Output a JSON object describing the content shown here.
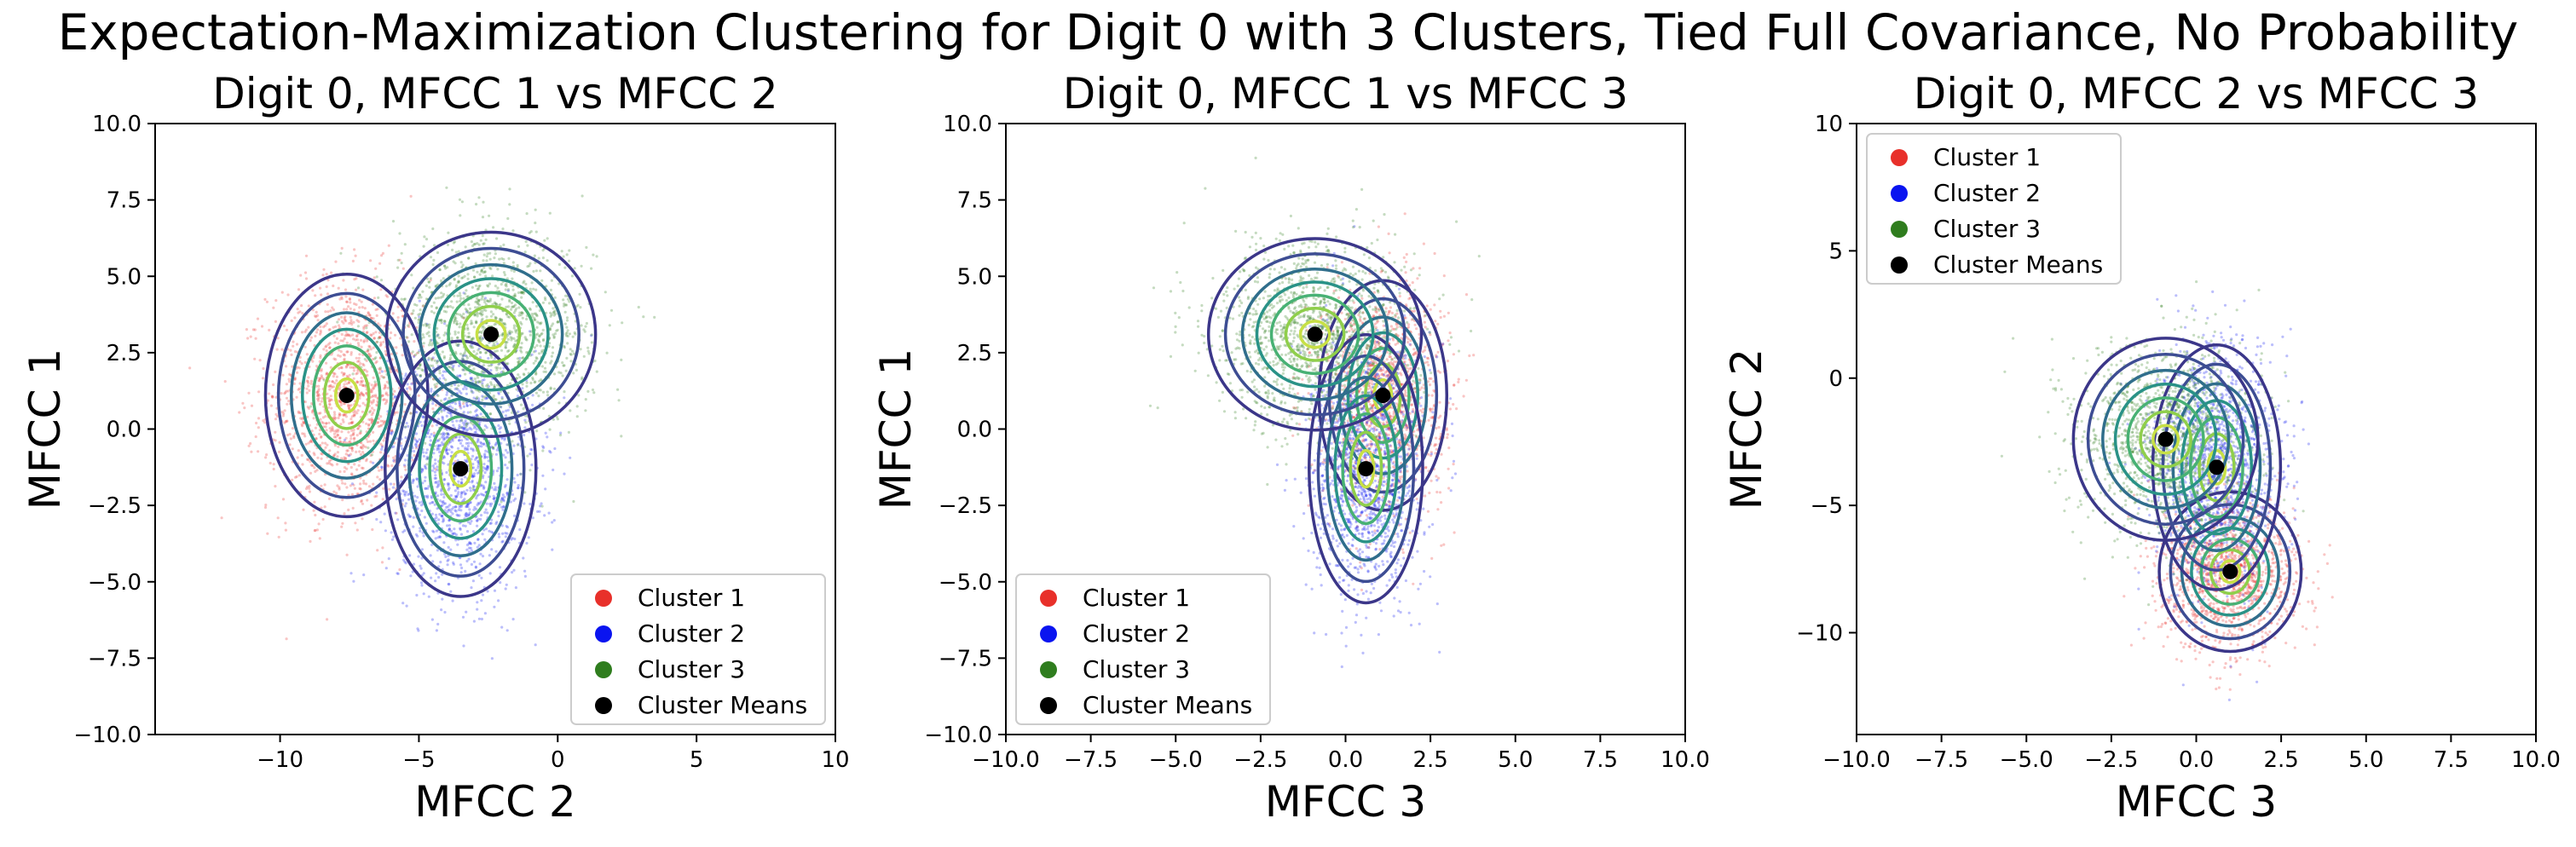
{
  "suptitle": "Expectation-Maximization Clustering for Digit 0 with 3 Clusters, Tied Full Covariance, No Probability",
  "colors": {
    "cluster1": "#e8302a",
    "cluster2": "#0a14f0",
    "cluster3": "#2f7d1e",
    "means": "#000000"
  },
  "legend_labels": [
    "Cluster 1",
    "Cluster 2",
    "Cluster 3",
    "Cluster Means"
  ],
  "chart_data": [
    {
      "type": "scatter",
      "title": "Digit 0, MFCC 1 vs MFCC 2",
      "xlabel": "MFCC 2",
      "ylabel": "MFCC 1",
      "xlim": [
        -14.5,
        10
      ],
      "ylim": [
        -10,
        10
      ],
      "xticks": [
        -10,
        -5,
        0,
        5,
        10
      ],
      "yticks": [
        -10.0,
        -7.5,
        -5.0,
        -2.5,
        0.0,
        2.5,
        5.0,
        7.5,
        10.0
      ],
      "xtick_labels": [
        "−10",
        "−5",
        "0",
        "5",
        "10"
      ],
      "ytick_labels": [
        "−10.0",
        "−7.5",
        "−5.0",
        "−2.5",
        "0.0",
        "2.5",
        "5.0",
        "7.5",
        "10.0"
      ],
      "legend_position": "lower-right",
      "series": [
        {
          "name": "Cluster 1",
          "color": "#e8302a",
          "mean": [
            -7.6,
            1.1
          ],
          "spread": [
            1.4,
            1.9
          ]
        },
        {
          "name": "Cluster 2",
          "color": "#0a14f0",
          "mean": [
            -3.5,
            -1.3
          ],
          "spread": [
            1.3,
            2.0
          ]
        },
        {
          "name": "Cluster 3",
          "color": "#2f7d1e",
          "mean": [
            -2.4,
            3.1
          ],
          "spread": [
            1.8,
            1.6
          ]
        }
      ],
      "cluster_means": [
        [
          -7.6,
          1.1
        ],
        [
          -3.5,
          -1.3
        ],
        [
          -2.4,
          3.1
        ]
      ]
    },
    {
      "type": "scatter",
      "title": "Digit 0, MFCC 1 vs MFCC 3",
      "xlabel": "MFCC 3",
      "ylabel": "MFCC 1",
      "xlim": [
        -10,
        10
      ],
      "ylim": [
        -10,
        10
      ],
      "xticks": [
        -10,
        -7.5,
        -5,
        -2.5,
        0,
        2.5,
        5,
        7.5,
        10
      ],
      "yticks": [
        -10.0,
        -7.5,
        -5.0,
        -2.5,
        0.0,
        2.5,
        5.0,
        7.5,
        10.0
      ],
      "xtick_labels": [
        "−10.0",
        "−7.5",
        "−5.0",
        "−2.5",
        "0.0",
        "2.5",
        "5.0",
        "7.5",
        "10.0"
      ],
      "ytick_labels": [
        "−10.0",
        "−7.5",
        "−5.0",
        "−2.5",
        "0.0",
        "2.5",
        "5.0",
        "7.5",
        "10.0"
      ],
      "legend_position": "lower-left",
      "series": [
        {
          "name": "Cluster 1",
          "color": "#e8302a",
          "mean": [
            1.1,
            1.1
          ],
          "spread": [
            0.9,
            1.8
          ]
        },
        {
          "name": "Cluster 2",
          "color": "#0a14f0",
          "mean": [
            0.6,
            -1.3
          ],
          "spread": [
            0.8,
            2.1
          ]
        },
        {
          "name": "Cluster 3",
          "color": "#2f7d1e",
          "mean": [
            -0.9,
            3.1
          ],
          "spread": [
            1.5,
            1.5
          ]
        }
      ],
      "cluster_means": [
        [
          1.1,
          1.1
        ],
        [
          0.6,
          -1.3
        ],
        [
          -0.9,
          3.1
        ]
      ]
    },
    {
      "type": "scatter",
      "title": "Digit 0, MFCC 2 vs MFCC 3",
      "xlabel": "MFCC 3",
      "ylabel": "MFCC 2",
      "xlim": [
        -10,
        10
      ],
      "ylim": [
        -14,
        10
      ],
      "xticks": [
        -10,
        -7.5,
        -5,
        -2.5,
        0,
        2.5,
        5,
        7.5,
        10
      ],
      "yticks": [
        -10,
        -5,
        0,
        5,
        10
      ],
      "xtick_labels": [
        "−10.0",
        "−7.5",
        "−5.0",
        "−2.5",
        "0.0",
        "2.5",
        "5.0",
        "7.5",
        "10.0"
      ],
      "ytick_labels": [
        "−10",
        "−5",
        "0",
        "5",
        "10"
      ],
      "legend_position": "upper-left",
      "series": [
        {
          "name": "Cluster 1",
          "color": "#e8302a",
          "mean": [
            1.0,
            -7.6
          ],
          "spread": [
            1.0,
            1.5
          ]
        },
        {
          "name": "Cluster 2",
          "color": "#0a14f0",
          "mean": [
            0.6,
            -3.5
          ],
          "spread": [
            0.9,
            2.3
          ]
        },
        {
          "name": "Cluster 3",
          "color": "#2f7d1e",
          "mean": [
            -0.9,
            -2.4
          ],
          "spread": [
            1.3,
            1.9
          ]
        }
      ],
      "cluster_means": [
        [
          1.0,
          -7.6
        ],
        [
          0.6,
          -3.5
        ],
        [
          -0.9,
          -2.4
        ]
      ]
    }
  ]
}
